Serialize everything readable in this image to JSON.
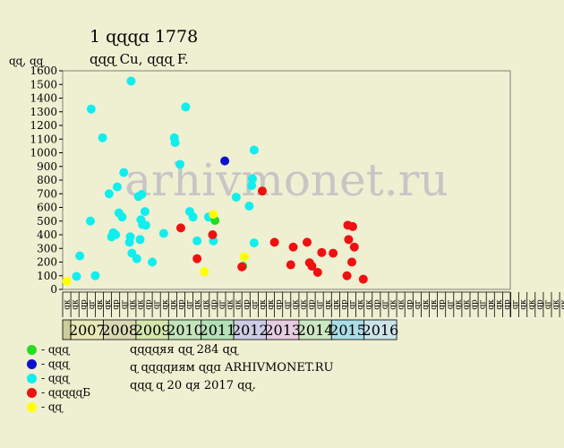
{
  "header": {
    "title": "1 ɋɋɋɑ 1778",
    "subtitle": "ɋɋɋ Cu, ɋɋɋ F.",
    "ylabel": "ɋɋ, ɋɋ"
  },
  "watermark": "arhivmonet.ru",
  "legend": [
    {
      "label": "- ɋɋɋ",
      "color": "#22dd22"
    },
    {
      "label": "- ɋɋɋ",
      "color": "#1010cc"
    },
    {
      "label": "- ɋɋɋ",
      "color": "#11eeee"
    },
    {
      "label": "- ɋɋɋɋɋБ",
      "color": "#ee1111"
    },
    {
      "label": "- ɋɋ",
      "color": "#ffff00"
    }
  ],
  "notes": [
    "ɋɋɋɋяя ɋɋ 284 ɋɋ",
    "ɋ ɋɋɋɋиям ɋɋɑ ARHIVMONET.RU",
    "ɋɋɋ ɋ 20 ɋя 2017 ɋɋ."
  ],
  "chart_data": {
    "type": "scatter",
    "title": "1 ɋɋɋɑ 1778",
    "ylabel": "ɋɋ, ɋɋ",
    "ylim": [
      0,
      1600
    ],
    "yticks": [
      0,
      100,
      200,
      300,
      400,
      500,
      600,
      700,
      800,
      900,
      1000,
      1100,
      1200,
      1300,
      1400,
      1500,
      1600
    ],
    "grid": false,
    "legend_position": "bottom-left",
    "quarter_labels": [
      "ɋк",
      "ɋк",
      "ɋр",
      "ɋг",
      "ɋк",
      "ɋк",
      "ɋр",
      "ɋг",
      "ɋк",
      "ɋк",
      "ɋр",
      "ɋг",
      "ɋк",
      "ɋк",
      "ɋр",
      "ɋг",
      "ɋк",
      "ɋк",
      "ɋр",
      "ɋг",
      "ɋк",
      "ɋк",
      "ɋр",
      "ɋг",
      "ɋк",
      "ɋк",
      "ɋр",
      "ɋг",
      "ɋк",
      "ɋк",
      "ɋр",
      "ɋг",
      "ɋк",
      "ɋк",
      "ɋр",
      "ɋг",
      "ɋк",
      "ɋк",
      "ɋр",
      "ɋг",
      "ɋк",
      "ɋк",
      "ɋр",
      "ɋг",
      "ɋк",
      "ɋк",
      "ɋр",
      "ɋг",
      "ɋк",
      "ɋк",
      "ɋр",
      "ɋг",
      "ɋк",
      "ɋк",
      "ɋр",
      "ɋг",
      "ɋк",
      "ɋк",
      "ɋр",
      "ɋг",
      "ɋк",
      "ɋк",
      "ɋр",
      "ɋг",
      "ɋк",
      "ɋк",
      "ɋр",
      "ɋг",
      "ɋк"
    ],
    "years": [
      {
        "year": "",
        "color": "#cccc99"
      },
      {
        "year": "2007",
        "color": "#e8e8b8"
      },
      {
        "year": "2008",
        "color": "#d9d9b4"
      },
      {
        "year": "2009",
        "color": "#d4e6aa"
      },
      {
        "year": "2010",
        "color": "#c4e4bc"
      },
      {
        "year": "2011",
        "color": "#b4e0b8"
      },
      {
        "year": "2012",
        "color": "#cccce6"
      },
      {
        "year": "2013",
        "color": "#e6cce0"
      },
      {
        "year": "2014",
        "color": "#cce6c4"
      },
      {
        "year": "2015",
        "color": "#aadde6"
      },
      {
        "year": "2016",
        "color": "#cce4e8"
      }
    ],
    "x_unit": "quarter index (0 = first column, 4 quarters per year, 2007 begins at 1)",
    "series": [
      {
        "color": "#11eeee",
        "points": [
          [
            1.2,
            95
          ],
          [
            1.6,
            245
          ],
          [
            2.9,
            500
          ],
          [
            3.0,
            1320
          ],
          [
            3.5,
            100
          ],
          [
            4.4,
            1110
          ],
          [
            5.2,
            700
          ],
          [
            5.5,
            385
          ],
          [
            5.7,
            415
          ],
          [
            6.0,
            400
          ],
          [
            6.2,
            750
          ],
          [
            6.4,
            560
          ],
          [
            6.8,
            530
          ],
          [
            7.0,
            855
          ],
          [
            7.7,
            345
          ],
          [
            7.8,
            385
          ],
          [
            7.9,
            1525
          ],
          [
            8.0,
            265
          ],
          [
            8.6,
            225
          ],
          [
            8.8,
            680
          ],
          [
            9.0,
            365
          ],
          [
            9.1,
            510
          ],
          [
            9.2,
            695
          ],
          [
            9.3,
            475
          ],
          [
            9.6,
            570
          ],
          [
            9.7,
            470
          ],
          [
            10.5,
            200
          ],
          [
            11.9,
            410
          ],
          [
            13.2,
            1110
          ],
          [
            13.3,
            1075
          ],
          [
            13.9,
            915
          ],
          [
            14.6,
            1335
          ],
          [
            15.1,
            570
          ],
          [
            15.5,
            530
          ],
          [
            16.0,
            355
          ],
          [
            17.4,
            530
          ],
          [
            18.0,
            355
          ],
          [
            20.8,
            675
          ],
          [
            22.4,
            610
          ],
          [
            22.7,
            760
          ],
          [
            22.8,
            810
          ],
          [
            23.0,
            340
          ],
          [
            23.0,
            1020
          ]
        ]
      },
      {
        "color": "#1010cc",
        "points": [
          [
            19.4,
            940
          ]
        ]
      },
      {
        "color": "#22dd22",
        "points": [
          [
            18.2,
            505
          ],
          [
            21.6,
            170
          ]
        ]
      },
      {
        "color": "#ffff00",
        "points": [
          [
            0.0,
            60
          ],
          [
            16.9,
            130
          ],
          [
            18.0,
            550
          ],
          [
            21.8,
            240
          ]
        ]
      },
      {
        "color": "#ee1111",
        "points": [
          [
            14.0,
            450
          ],
          [
            16.0,
            225
          ],
          [
            17.9,
            400
          ],
          [
            21.5,
            165
          ],
          [
            24.0,
            720
          ],
          [
            25.5,
            345
          ],
          [
            27.5,
            180
          ],
          [
            27.8,
            310
          ],
          [
            29.5,
            345
          ],
          [
            29.8,
            195
          ],
          [
            30.1,
            170
          ],
          [
            30.8,
            125
          ],
          [
            31.3,
            270
          ],
          [
            32.7,
            265
          ],
          [
            34.4,
            100
          ],
          [
            34.5,
            470
          ],
          [
            34.6,
            365
          ],
          [
            35.0,
            200
          ],
          [
            35.1,
            460
          ],
          [
            35.3,
            310
          ],
          [
            36.4,
            75
          ]
        ]
      }
    ]
  }
}
